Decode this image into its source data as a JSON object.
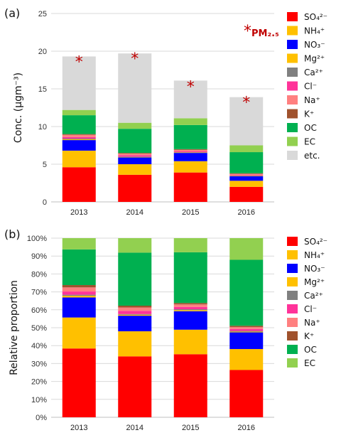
{
  "colors": {
    "SO4": "#ff0000",
    "NH4": "#ffc000",
    "NO3": "#0000ff",
    "Mg": "#ffc000",
    "Ca": "#808080",
    "Cl": "#ff3399",
    "Na": "#ff8080",
    "K": "#a0522d",
    "OC": "#00b050",
    "EC": "#92d050",
    "etc": "#d9d9d9"
  },
  "chart_data": [
    {
      "type": "bar",
      "stacked": true,
      "panel_label": "(a)",
      "ylabel": "Conc. (μgm⁻³)",
      "ylim": [
        0,
        25
      ],
      "yticks": [
        "0",
        "5",
        "10",
        "15",
        "20",
        "25"
      ],
      "grid": true,
      "legend_position": "right",
      "categories": [
        "2013",
        "2014",
        "2015",
        "2016"
      ],
      "series": [
        {
          "name": "SO₄²⁻",
          "key": "SO4",
          "values": [
            4.6,
            3.6,
            3.9,
            2.0
          ]
        },
        {
          "name": "NH₄⁺",
          "key": "NH4",
          "values": [
            2.2,
            1.4,
            1.5,
            0.8
          ]
        },
        {
          "name": "NO₃⁻",
          "key": "NO3",
          "values": [
            1.4,
            0.9,
            1.1,
            0.6
          ]
        },
        {
          "name": "Mg²⁺",
          "key": "Mg",
          "values": [
            0.1,
            0.05,
            0.05,
            0.05
          ]
        },
        {
          "name": "Ca²⁺",
          "key": "Ca",
          "values": [
            0.1,
            0.05,
            0.05,
            0.05
          ]
        },
        {
          "name": "Cl⁻",
          "key": "Cl",
          "values": [
            0.2,
            0.2,
            0.1,
            0.1
          ]
        },
        {
          "name": "Na⁺",
          "key": "Na",
          "values": [
            0.3,
            0.2,
            0.2,
            0.1
          ]
        },
        {
          "name": "K⁺",
          "key": "K",
          "values": [
            0.1,
            0.1,
            0.1,
            0.1
          ]
        },
        {
          "name": "OC",
          "key": "OC",
          "values": [
            2.5,
            3.2,
            3.2,
            2.8
          ]
        },
        {
          "name": "EC",
          "key": "EC",
          "values": [
            0.7,
            0.8,
            0.9,
            0.9
          ]
        },
        {
          "name": "etc.",
          "key": "etc",
          "values": [
            7.1,
            9.2,
            5.0,
            6.4
          ]
        }
      ],
      "pm25_values": [
        19.3,
        19.7,
        16.0,
        13.9
      ],
      "pm25_label": "PM₂.₅",
      "pm25_marker": "*"
    },
    {
      "type": "bar",
      "stacked": true,
      "panel_label": "(b)",
      "ylabel": "Relative proportion",
      "ylim": [
        0,
        100
      ],
      "yticks": [
        "0%",
        "10%",
        "20%",
        "30%",
        "40%",
        "50%",
        "60%",
        "70%",
        "80%",
        "90%",
        "100%"
      ],
      "grid": true,
      "legend_position": "right",
      "categories": [
        "2013",
        "2014",
        "2015",
        "2016"
      ],
      "series": [
        {
          "name": "SO₄²⁻",
          "key": "SO4",
          "values": [
            38.4,
            34.0,
            35.2,
            26.4
          ]
        },
        {
          "name": "NH₄⁺",
          "key": "NH4",
          "values": [
            17.3,
            14.0,
            13.7,
            11.7
          ]
        },
        {
          "name": "NO₃⁻",
          "key": "NO3",
          "values": [
            11.2,
            8.7,
            10.3,
            9.3
          ]
        },
        {
          "name": "Mg²⁺",
          "key": "Mg",
          "values": [
            0.9,
            0.5,
            0.6,
            0.4
          ]
        },
        {
          "name": "Ca²⁺",
          "key": "Ca",
          "values": [
            0.6,
            0.4,
            0.5,
            0.4
          ]
        },
        {
          "name": "Cl⁻",
          "key": "Cl",
          "values": [
            1.8,
            1.8,
            1.3,
            1.1
          ]
        },
        {
          "name": "Na⁺",
          "key": "Na",
          "values": [
            2.3,
            1.9,
            1.4,
            1.0
          ]
        },
        {
          "name": "K⁺",
          "key": "K",
          "values": [
            1.3,
            1.0,
            0.8,
            0.8
          ]
        },
        {
          "name": "OC",
          "key": "OC",
          "values": [
            19.9,
            29.6,
            28.3,
            36.8
          ]
        },
        {
          "name": "EC",
          "key": "EC",
          "values": [
            6.3,
            8.1,
            7.9,
            12.1
          ]
        }
      ]
    }
  ]
}
